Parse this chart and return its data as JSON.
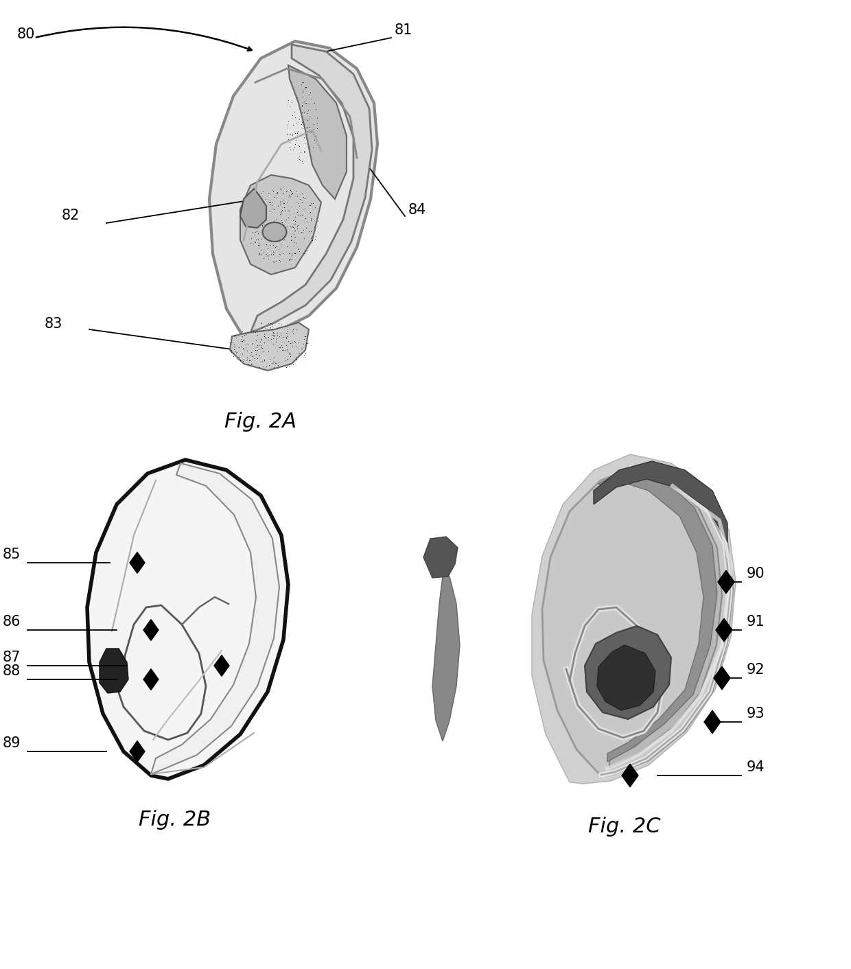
{
  "fig_width": 12.4,
  "fig_height": 14.12,
  "background_color": "#ffffff",
  "fig2a_label": "Fig. 2A",
  "fig2b_label": "Fig. 2B",
  "fig2c_label": "Fig. 2C",
  "label_fontsize": 15,
  "caption_fontsize": 22
}
